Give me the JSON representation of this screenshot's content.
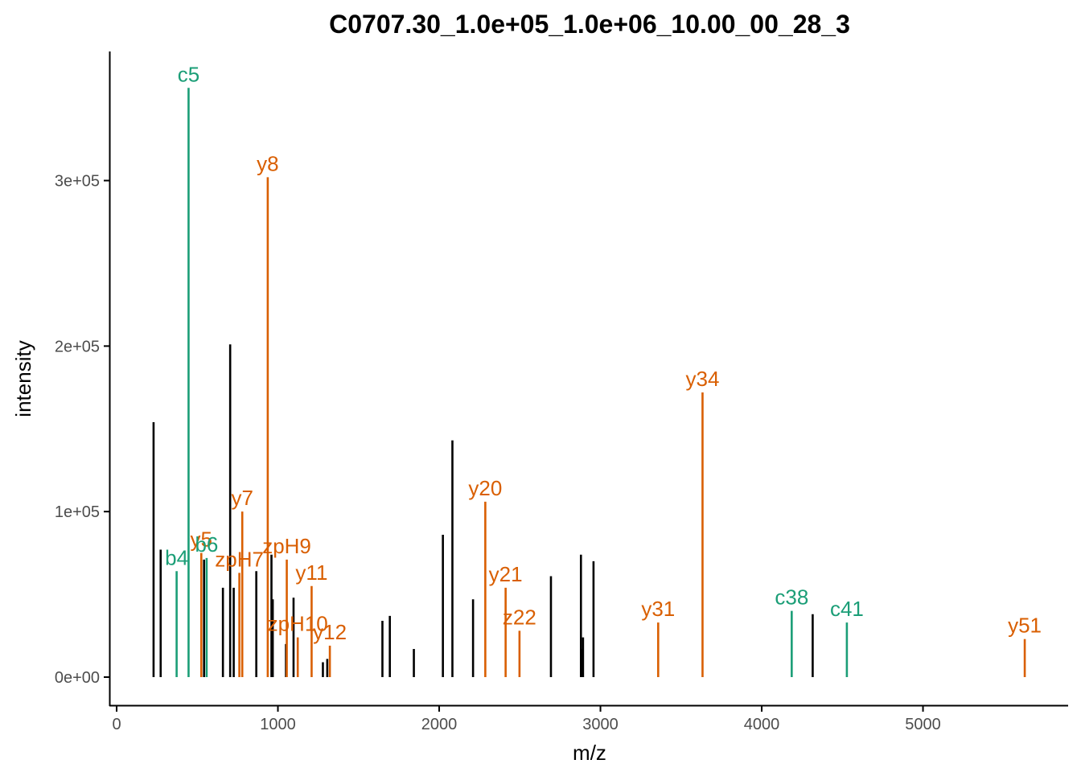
{
  "chart_data": {
    "type": "spectrum",
    "title": "C0707.30_1.0e+05_1.0e+06_10.00_00_28_3",
    "xlabel": "m/z",
    "ylabel": "intensity",
    "xlim": [
      -40,
      5900
    ],
    "ylim": [
      -17000,
      378000
    ],
    "xticks": [
      0,
      1000,
      2000,
      3000,
      4000,
      5000
    ],
    "xtick_labels": [
      "0",
      "1000",
      "2000",
      "3000",
      "4000",
      "5000"
    ],
    "yticks": [
      0,
      100000,
      200000,
      300000
    ],
    "ytick_labels": [
      "0e+00",
      "1e+05",
      "2e+05",
      "3e+05"
    ],
    "grid": false,
    "colors": {
      "unannotated": "#000000",
      "by_ions": "#1b9e77",
      "yz_ions": "#d95f02"
    },
    "peaks": [
      {
        "mz": 229,
        "intensity": 154000,
        "label": "",
        "ion": "none"
      },
      {
        "mz": 273,
        "intensity": 77000,
        "label": "",
        "ion": "none"
      },
      {
        "mz": 372,
        "intensity": 64000,
        "label": "b4",
        "ion": "by"
      },
      {
        "mz": 446,
        "intensity": 356000,
        "label": "c5",
        "ion": "by"
      },
      {
        "mz": 525,
        "intensity": 75000,
        "label": "y5",
        "ion": "yz"
      },
      {
        "mz": 542,
        "intensity": 71000,
        "label": "",
        "ion": "none"
      },
      {
        "mz": 558,
        "intensity": 72000,
        "label": "b6",
        "ion": "by"
      },
      {
        "mz": 659,
        "intensity": 54000,
        "label": "",
        "ion": "none"
      },
      {
        "mz": 704,
        "intensity": 201000,
        "label": "",
        "ion": "none"
      },
      {
        "mz": 726,
        "intensity": 54000,
        "label": "",
        "ion": "none"
      },
      {
        "mz": 761,
        "intensity": 63000,
        "label": "zpH7",
        "ion": "yz"
      },
      {
        "mz": 779,
        "intensity": 100000,
        "label": "y7",
        "ion": "yz"
      },
      {
        "mz": 866,
        "intensity": 64000,
        "label": "",
        "ion": "none"
      },
      {
        "mz": 937,
        "intensity": 302000,
        "label": "y8",
        "ion": "yz"
      },
      {
        "mz": 960,
        "intensity": 74000,
        "label": "",
        "ion": "none"
      },
      {
        "mz": 968,
        "intensity": 47000,
        "label": "",
        "ion": "none"
      },
      {
        "mz": 1050,
        "intensity": 20000,
        "label": "",
        "ion": "none"
      },
      {
        "mz": 1055,
        "intensity": 71000,
        "label": "zpH9",
        "ion": "yz"
      },
      {
        "mz": 1097,
        "intensity": 48000,
        "label": "",
        "ion": "none"
      },
      {
        "mz": 1123,
        "intensity": 24000,
        "label": "zpH10",
        "ion": "yz"
      },
      {
        "mz": 1209,
        "intensity": 55000,
        "label": "y11",
        "ion": "yz"
      },
      {
        "mz": 1279,
        "intensity": 9000,
        "label": "",
        "ion": "none"
      },
      {
        "mz": 1306,
        "intensity": 11000,
        "label": "",
        "ion": "none"
      },
      {
        "mz": 1322,
        "intensity": 19000,
        "label": "y12",
        "ion": "yz"
      },
      {
        "mz": 1648,
        "intensity": 34000,
        "label": "",
        "ion": "none"
      },
      {
        "mz": 1694,
        "intensity": 37000,
        "label": "",
        "ion": "none"
      },
      {
        "mz": 1843,
        "intensity": 17000,
        "label": "",
        "ion": "none"
      },
      {
        "mz": 2023,
        "intensity": 86000,
        "label": "",
        "ion": "none"
      },
      {
        "mz": 2082,
        "intensity": 143000,
        "label": "",
        "ion": "none"
      },
      {
        "mz": 2210,
        "intensity": 47000,
        "label": "",
        "ion": "none"
      },
      {
        "mz": 2286,
        "intensity": 106000,
        "label": "y20",
        "ion": "yz"
      },
      {
        "mz": 2412,
        "intensity": 54000,
        "label": "y21",
        "ion": "yz"
      },
      {
        "mz": 2498,
        "intensity": 28000,
        "label": "z22",
        "ion": "yz"
      },
      {
        "mz": 2693,
        "intensity": 61000,
        "label": "",
        "ion": "none"
      },
      {
        "mz": 2879,
        "intensity": 74000,
        "label": "",
        "ion": "none"
      },
      {
        "mz": 2884,
        "intensity": 17000,
        "label": "",
        "ion": "none"
      },
      {
        "mz": 2892,
        "intensity": 24000,
        "label": "",
        "ion": "none"
      },
      {
        "mz": 2957,
        "intensity": 70000,
        "label": "",
        "ion": "none"
      },
      {
        "mz": 3358,
        "intensity": 33000,
        "label": "y31",
        "ion": "yz"
      },
      {
        "mz": 3633,
        "intensity": 172000,
        "label": "y34",
        "ion": "yz"
      },
      {
        "mz": 4186,
        "intensity": 40000,
        "label": "c38",
        "ion": "by"
      },
      {
        "mz": 4316,
        "intensity": 38000,
        "label": "",
        "ion": "none"
      },
      {
        "mz": 4528,
        "intensity": 33000,
        "label": "c41",
        "ion": "by"
      },
      {
        "mz": 5631,
        "intensity": 23000,
        "label": "y51",
        "ion": "yz"
      }
    ]
  }
}
